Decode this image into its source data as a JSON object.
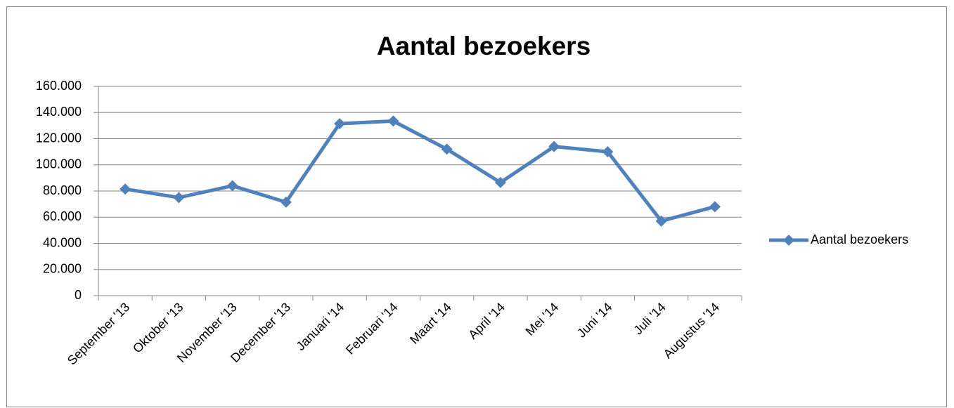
{
  "chart_data": {
    "type": "line",
    "title": "Aantal bezoekers",
    "categories": [
      "September '13",
      "Oktober '13",
      "November '13",
      "December '13",
      "Januari '14",
      "Februari '14",
      "Maart '14",
      "April '14",
      "Mei '14",
      "Juni '14",
      "Juli '14",
      "Augustus '14"
    ],
    "series": [
      {
        "name": "Aantal bezoekers",
        "color": "#4f81bd",
        "values": [
          81500,
          75000,
          84000,
          71500,
          131500,
          133500,
          112000,
          86500,
          114000,
          110000,
          57000,
          68000
        ]
      }
    ],
    "ylim": [
      0,
      160000
    ],
    "yticks": [
      0,
      {
        "value": 20000,
        "label": "20.000"
      },
      {
        "value": 40000,
        "label": "40.000"
      },
      {
        "value": 60000,
        "label": "60.000"
      },
      {
        "value": 80000,
        "label": "80.000"
      },
      {
        "value": 100000,
        "label": "100.000"
      },
      {
        "value": 120000,
        "label": "120.000"
      },
      {
        "value": 140000,
        "label": "140.000"
      },
      {
        "value": 160000,
        "label": "160.000"
      }
    ],
    "grid": true,
    "legend": "right"
  }
}
